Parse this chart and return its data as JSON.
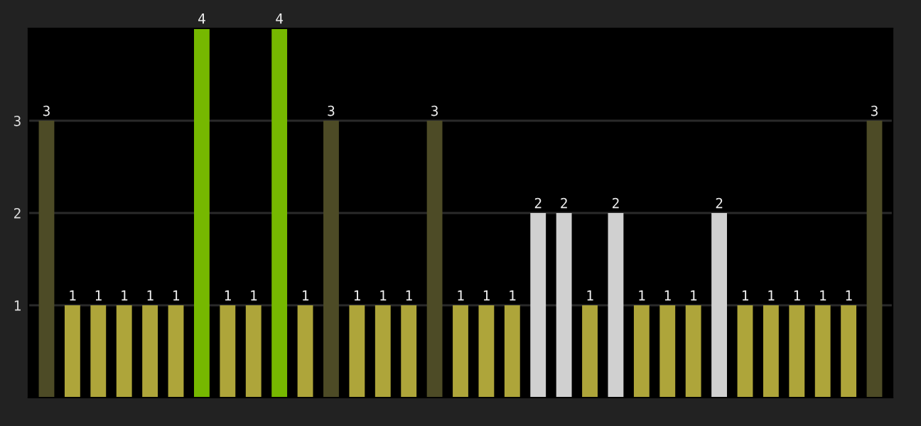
{
  "chart_data": {
    "type": "bar",
    "categories": [
      null,
      null,
      null,
      null,
      null,
      null,
      null,
      null,
      null,
      null,
      null,
      null,
      null,
      null,
      null,
      null,
      null,
      null,
      null,
      null,
      null,
      null,
      null,
      null,
      null,
      null,
      null,
      null,
      null,
      null,
      null,
      null,
      null
    ],
    "values": [
      3,
      1,
      1,
      1,
      1,
      1,
      4,
      1,
      1,
      4,
      1,
      3,
      1,
      1,
      1,
      3,
      1,
      1,
      1,
      2,
      2,
      1,
      2,
      1,
      1,
      1,
      2,
      1,
      1,
      1,
      1,
      1,
      3
    ],
    "colors": [
      "#4d4b26",
      "#aea53a",
      "#aea53a",
      "#aea53a",
      "#aea53a",
      "#aea53a",
      "#76b800",
      "#aea53a",
      "#aea53a",
      "#76b800",
      "#aea53a",
      "#4d4b26",
      "#aea53a",
      "#aea53a",
      "#aea53a",
      "#4d4b26",
      "#aea53a",
      "#aea53a",
      "#aea53a",
      "#d0d0d0",
      "#d0d0d0",
      "#aea53a",
      "#d0d0d0",
      "#aea53a",
      "#aea53a",
      "#aea53a",
      "#d0d0d0",
      "#aea53a",
      "#aea53a",
      "#aea53a",
      "#aea53a",
      "#aea53a",
      "#4d4b26"
    ],
    "ylim": [
      0,
      4
    ],
    "yticks": [
      1,
      2,
      3
    ],
    "grid": "y",
    "data_labels": true
  }
}
